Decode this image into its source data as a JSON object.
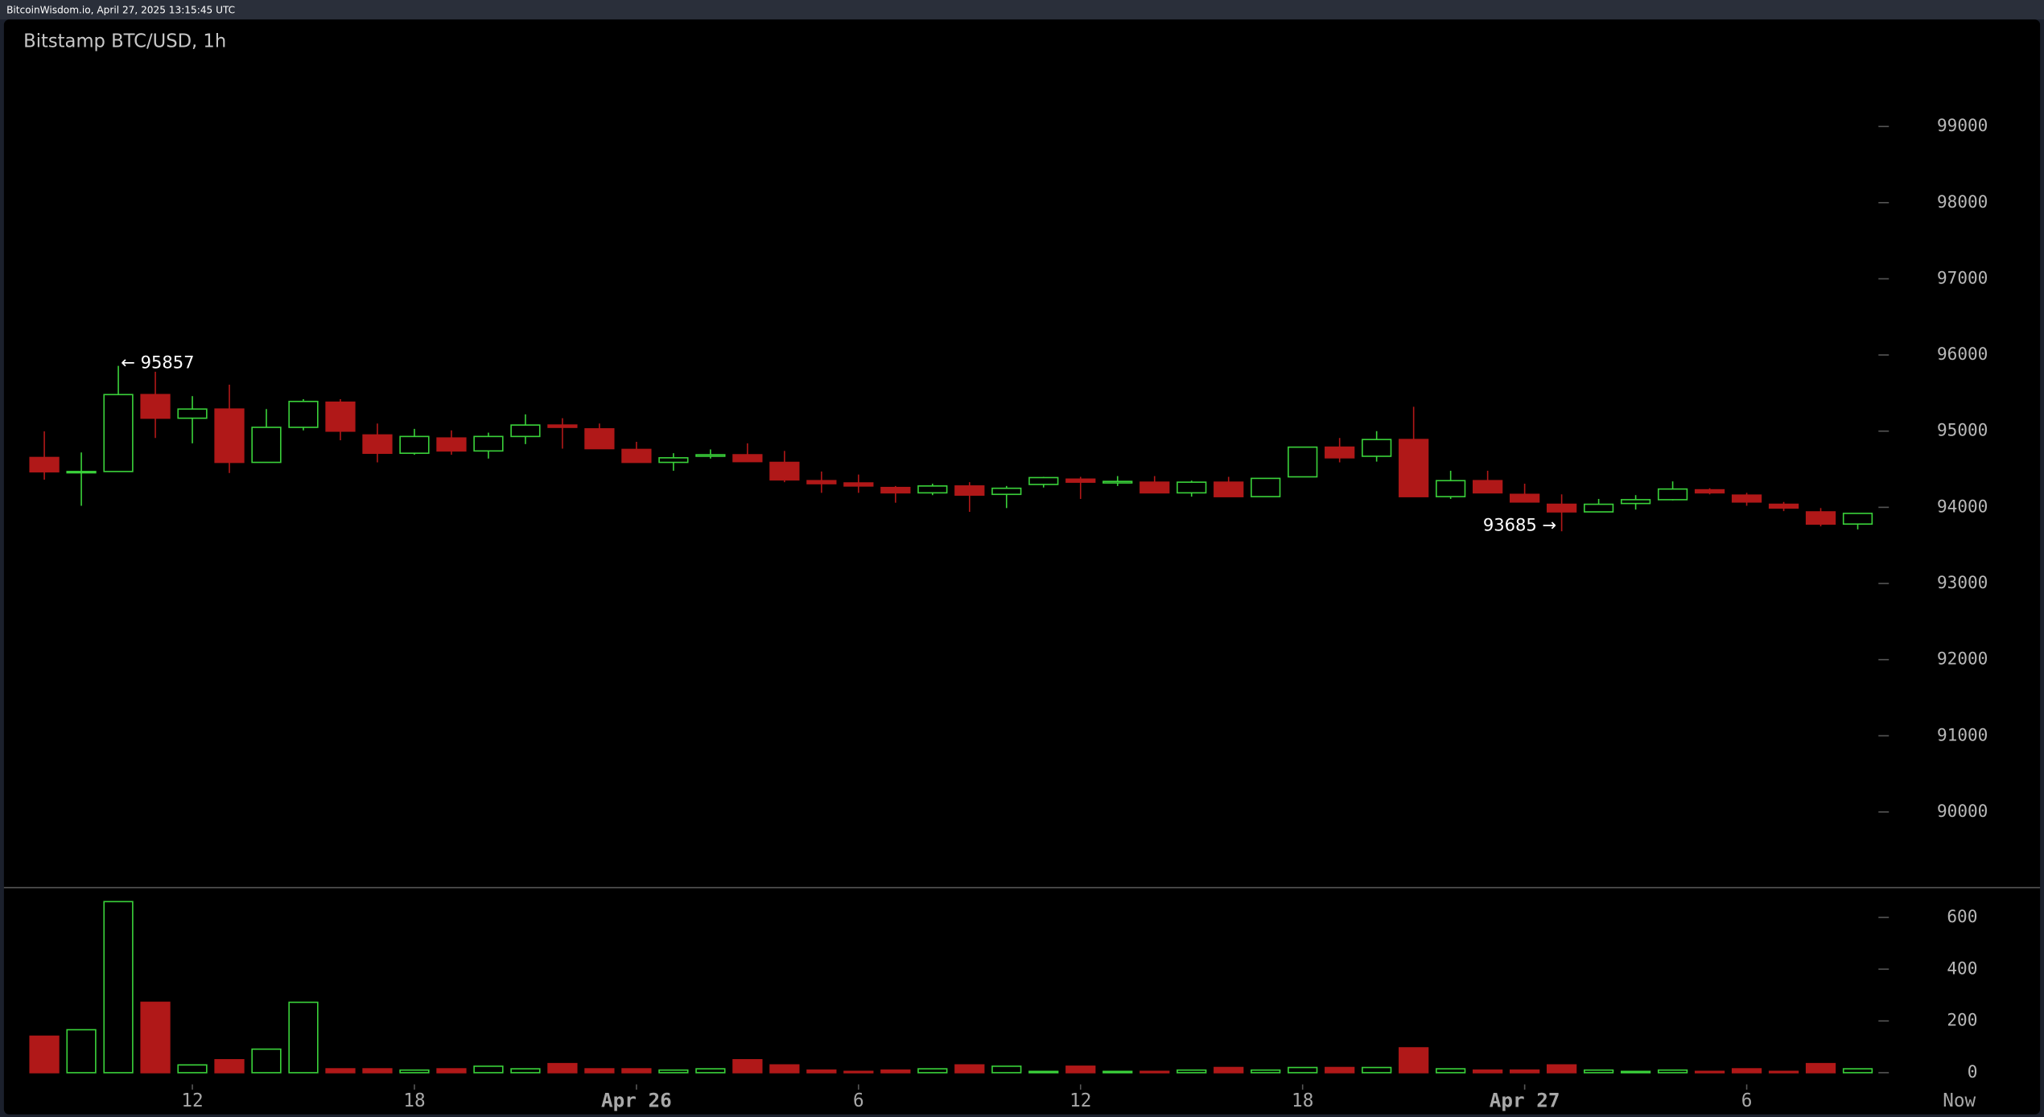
{
  "chart_data": {
    "type": "candlestick",
    "header": "BitcoinWisdom.io, April 27, 2025 13:15:45 UTC",
    "title": "Bitstamp BTC/USD, 1h",
    "categories": [
      null,
      null,
      null,
      null,
      "12",
      null,
      null,
      null,
      null,
      null,
      "18",
      null,
      null,
      null,
      null,
      null,
      "Apr 26",
      null,
      null,
      null,
      null,
      null,
      "6",
      null,
      null,
      null,
      null,
      null,
      "12",
      null,
      null,
      null,
      null,
      null,
      "18",
      null,
      null,
      null,
      null,
      null,
      "Apr 27",
      null,
      null,
      null,
      null,
      null,
      "6",
      null,
      null,
      null
    ],
    "x_end_label": "Now",
    "open": [
      94654,
      94466,
      94470,
      95480,
      95170,
      95290,
      94590,
      95050,
      95380,
      94950,
      94710,
      94910,
      94740,
      94930,
      95080,
      95030,
      94760,
      94590,
      94670,
      94690,
      94590,
      94350,
      94320,
      94260,
      94190,
      94280,
      94170,
      94300,
      94370,
      94320,
      94330,
      94190,
      94330,
      94140,
      94400,
      94790,
      94670,
      94890,
      94140,
      94350,
      94170,
      94040,
      93940,
      94050,
      94100,
      94230,
      94160,
      94040,
      93940,
      93780
    ],
    "high": [
      94997,
      94720,
      95857,
      95780,
      95460,
      95610,
      95290,
      95420,
      95420,
      95100,
      95030,
      95010,
      94980,
      95220,
      95170,
      95100,
      94860,
      94710,
      94760,
      94840,
      94740,
      94470,
      94430,
      94280,
      94310,
      94330,
      94280,
      94400,
      94400,
      94410,
      94410,
      94350,
      94400,
      94380,
      94790,
      94910,
      95000,
      95320,
      94480,
      94480,
      94310,
      94170,
      94110,
      94160,
      94340,
      94250,
      94190,
      94070,
      93990,
      93920
    ],
    "low": [
      94363,
      94020,
      94466,
      94910,
      94840,
      94450,
      94590,
      95010,
      94880,
      94590,
      94690,
      94690,
      94640,
      94830,
      94770,
      94770,
      94590,
      94480,
      94640,
      94600,
      94330,
      94190,
      94190,
      94060,
      94160,
      93940,
      93990,
      94260,
      94110,
      94280,
      94190,
      94140,
      94140,
      94140,
      94400,
      94590,
      94600,
      94140,
      94110,
      94190,
      94070,
      93685,
      93940,
      93970,
      94090,
      94170,
      94020,
      93950,
      93750,
      93710
    ],
    "close": [
      94466,
      94470,
      95480,
      95170,
      95290,
      94590,
      95050,
      95390,
      95000,
      94710,
      94930,
      94740,
      94930,
      95080,
      95050,
      94770,
      94590,
      94650,
      94690,
      94600,
      94360,
      94310,
      94280,
      94190,
      94280,
      94160,
      94250,
      94390,
      94330,
      94340,
      94190,
      94330,
      94140,
      94380,
      94790,
      94650,
      94890,
      94140,
      94350,
      94190,
      94070,
      93940,
      94040,
      94100,
      94240,
      94190,
      94070,
      93990,
      93780,
      93920
    ],
    "volume": [
      141,
      166,
      661,
      272,
      30,
      50,
      91,
      272,
      15,
      15,
      10,
      15,
      25,
      15,
      35,
      15,
      15,
      10,
      15,
      50,
      30,
      10,
      5,
      10,
      15,
      30,
      25,
      5,
      25,
      5,
      5,
      10,
      20,
      10,
      20,
      20,
      20,
      96,
      15,
      10,
      10,
      30,
      10,
      5,
      10,
      5,
      15,
      5,
      35,
      15
    ],
    "up_color": "#3ad13a",
    "down_color": "#b01818",
    "ylim": [
      89000,
      100000
    ],
    "yticks": [
      90000,
      91000,
      92000,
      93000,
      94000,
      95000,
      96000,
      97000,
      98000,
      99000
    ],
    "volume_ylim": [
      0,
      700
    ],
    "volume_yticks": [
      0,
      200,
      400,
      600
    ],
    "annotations": [
      {
        "value": 95857,
        "label": "← 95857"
      },
      {
        "value": 93685,
        "label": "93685 →"
      }
    ]
  }
}
